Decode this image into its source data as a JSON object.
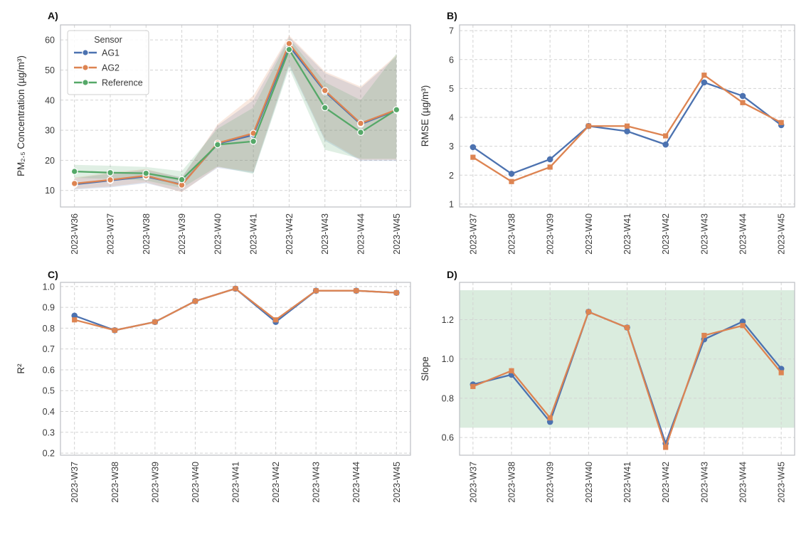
{
  "figure": {
    "background": "#ffffff",
    "grid_color": "#d3d3d3",
    "border_color": "#bcbfc3"
  },
  "palette": {
    "ag1_blue": "#4C72B0",
    "ag2_orange": "#DD8452",
    "reference_green": "#55A868"
  },
  "chart_data": [
    {
      "id": "A",
      "panel_label": "A)",
      "type": "line",
      "categories": [
        "2023-W36",
        "2023-W37",
        "2023-W38",
        "2023-W39",
        "2023-W40",
        "2023-W41",
        "2023-W42",
        "2023-W43",
        "2023-W44",
        "2023-W45"
      ],
      "xlabel": "",
      "ylabel": "PM₂.₅ Concentration (µg/m³)",
      "ylim": [
        4.5,
        65
      ],
      "yticks": [
        10,
        20,
        30,
        40,
        50,
        60
      ],
      "ytick_decimals": 0,
      "grid": true,
      "band_opacity": 0.18,
      "legend": {
        "title": "Sensor",
        "position": "upper-left"
      },
      "series": [
        {
          "name": "AG1",
          "color": "#4C72B0",
          "marker": "circle",
          "marker_edge": "#ffffff",
          "values": [
            12.0,
            13.3,
            14.6,
            12.0,
            25.5,
            28.4,
            58.0,
            42.8,
            32.0,
            36.6
          ],
          "band": {
            "lo": [
              10.3,
              11.0,
              12.4,
              9.6,
              17.5,
              15.8,
              51.5,
              26.5,
              19.8,
              19.8
            ],
            "hi": [
              14.0,
              15.6,
              16.8,
              14.4,
              31.5,
              40.0,
              61.0,
              49.0,
              44.0,
              54.5
            ]
          }
        },
        {
          "name": "AG2",
          "color": "#DD8452",
          "marker": "circle",
          "marker_edge": "#ffffff",
          "values": [
            12.3,
            13.5,
            14.9,
            11.8,
            25.7,
            29.0,
            58.8,
            43.2,
            32.3,
            36.8
          ],
          "band": {
            "lo": [
              10.6,
              11.3,
              12.7,
              9.4,
              17.8,
              16.2,
              52.0,
              27.0,
              20.2,
              20.2
            ],
            "hi": [
              14.3,
              15.9,
              17.1,
              14.2,
              32.0,
              41.5,
              61.5,
              49.5,
              44.5,
              55.0
            ]
          }
        },
        {
          "name": "Reference",
          "color": "#55A868",
          "marker": "circle",
          "marker_edge": "#ffffff",
          "values": [
            16.3,
            15.9,
            15.7,
            13.6,
            25.2,
            26.3,
            56.8,
            37.5,
            29.3,
            36.8
          ],
          "band": {
            "lo": [
              14.2,
              13.8,
              13.3,
              10.8,
              18.0,
              15.5,
              50.5,
              23.5,
              20.5,
              20.5
            ],
            "hi": [
              18.5,
              18.2,
              17.8,
              16.4,
              30.5,
              37.5,
              60.5,
              46.0,
              40.0,
              55.5
            ]
          }
        }
      ]
    },
    {
      "id": "B",
      "panel_label": "B)",
      "type": "line",
      "categories": [
        "2023-W37",
        "2023-W38",
        "2023-W39",
        "2023-W40",
        "2023-W41",
        "2023-W42",
        "2023-W43",
        "2023-W44",
        "2023-W45"
      ],
      "xlabel": "",
      "ylabel": "RMSE (µg/m³)",
      "ylim": [
        0.9,
        7.2
      ],
      "yticks": [
        1,
        2,
        3,
        4,
        5,
        6,
        7
      ],
      "ytick_decimals": 0,
      "grid": true,
      "series": [
        {
          "name": "AG1",
          "color": "#4C72B0",
          "marker": "circle",
          "values": [
            2.97,
            2.05,
            2.55,
            3.7,
            3.52,
            3.06,
            5.21,
            4.74,
            3.73
          ]
        },
        {
          "name": "AG2",
          "color": "#DD8452",
          "marker": "square",
          "values": [
            2.62,
            1.78,
            2.28,
            3.7,
            3.7,
            3.36,
            5.46,
            4.51,
            3.82
          ]
        }
      ]
    },
    {
      "id": "C",
      "panel_label": "C)",
      "type": "line",
      "categories": [
        "2023-W37",
        "2023-W38",
        "2023-W39",
        "2023-W40",
        "2023-W41",
        "2023-W42",
        "2023-W43",
        "2023-W44",
        "2023-W45"
      ],
      "xlabel": "",
      "ylabel": "R²",
      "ylim": [
        0.19,
        1.02
      ],
      "yticks": [
        0.2,
        0.3,
        0.4,
        0.5,
        0.6,
        0.7,
        0.8,
        0.9,
        1.0
      ],
      "ytick_decimals": 1,
      "grid": true,
      "series": [
        {
          "name": "AG1",
          "color": "#4C72B0",
          "marker": "circle",
          "values": [
            0.86,
            0.79,
            0.83,
            0.93,
            0.99,
            0.83,
            0.98,
            0.98,
            0.97
          ]
        },
        {
          "name": "AG2",
          "color": "#DD8452",
          "marker": "square",
          "values": [
            0.84,
            0.79,
            0.83,
            0.93,
            0.99,
            0.84,
            0.98,
            0.98,
            0.97
          ]
        }
      ]
    },
    {
      "id": "D",
      "panel_label": "D)",
      "type": "line",
      "categories": [
        "2023-W37",
        "2023-W38",
        "2023-W39",
        "2023-W40",
        "2023-W41",
        "2023-W42",
        "2023-W43",
        "2023-W44",
        "2023-W45"
      ],
      "xlabel": "",
      "ylabel": "Slope",
      "ylim": [
        0.51,
        1.39
      ],
      "yticks": [
        0.6,
        0.8,
        1.0,
        1.2
      ],
      "ytick_decimals": 1,
      "grid": true,
      "bands_h": [
        {
          "lo": 0.65,
          "hi": 1.35,
          "color": "#55A868",
          "opacity": 0.22
        }
      ],
      "series": [
        {
          "name": "AG1",
          "color": "#4C72B0",
          "marker": "circle",
          "values": [
            0.87,
            0.92,
            0.68,
            1.24,
            1.16,
            0.57,
            1.1,
            1.19,
            0.95
          ]
        },
        {
          "name": "AG2",
          "color": "#DD8452",
          "marker": "square",
          "values": [
            0.86,
            0.94,
            0.7,
            1.24,
            1.16,
            0.55,
            1.12,
            1.17,
            0.93
          ]
        }
      ]
    }
  ]
}
